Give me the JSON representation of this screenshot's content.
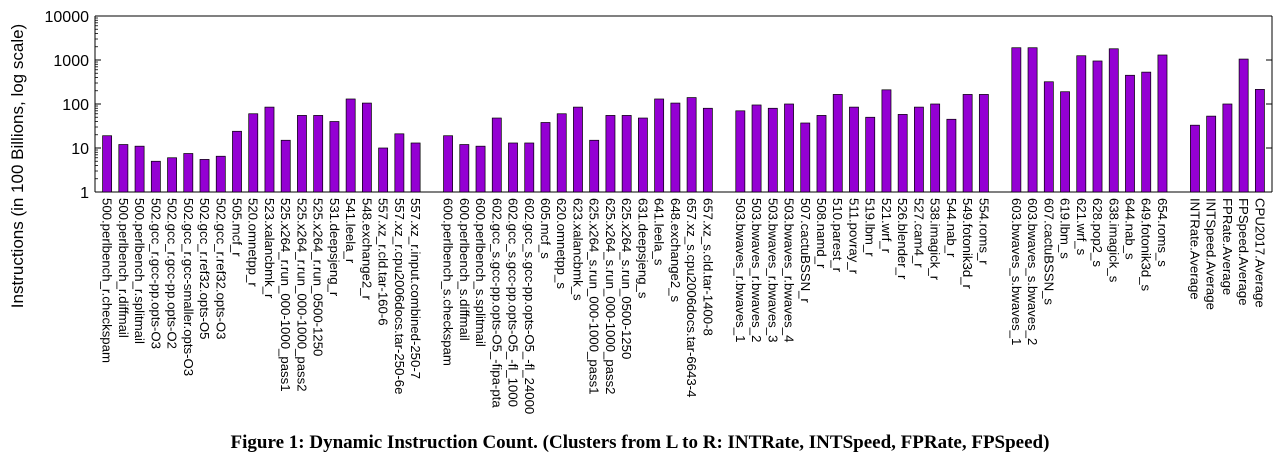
{
  "caption": "Figure 1: Dynamic Instruction Count. (Clusters from L to R: INTRate, INTSpeed, FPRate, FPSpeed)",
  "colors": {
    "bar": "#9400D3",
    "bar_edge": "#000000"
  },
  "chart_data": {
    "type": "bar",
    "title": "",
    "xlabel": "",
    "ylabel": "Instructions (in 100 Billions, log scale)",
    "yscale": "log",
    "ylim": [
      1,
      10000
    ],
    "yticks": [
      "1",
      "10",
      "100",
      "1000",
      "10000"
    ],
    "grid": false,
    "clusters": [
      {
        "categories": [
          "500.perlbench_r.checkspam",
          "500.perlbench_r.diffmail",
          "500.perlbench_r.splitmail",
          "502.gcc_r.gcc-pp.opts-O3",
          "502.gcc_r.gcc-pp.opts-O2",
          "502.gcc_r.gcc-smaller.opts-O3",
          "502.gcc_r.ref32.opts-O5",
          "502.gcc_r.ref32.opts-O3",
          "505.mcf_r",
          "520.omnetpp_r",
          "523.xalancbmk_r",
          "525.x264_r.run_000-1000_pass1",
          "525.x264_r.run_000-1000_pass2",
          "525.x264_r.run_0500-1250",
          "531.deepsjeng_r",
          "541.leela_r",
          "548.exchange2_r",
          "557.xz_r.cld.tar-160-6",
          "557.xz_r.cpu2006docs.tar-250-6e",
          "557.xz_r.input.combined-250-7"
        ],
        "values": [
          19,
          12,
          11,
          5,
          6,
          7.5,
          5.5,
          6.5,
          24,
          60,
          85,
          15,
          55,
          55,
          40,
          130,
          105,
          10,
          21,
          13
        ]
      },
      {
        "categories": [
          "600.perlbench_s.checkspam",
          "600.perlbench_s.diffmail",
          "600.perlbench_s.splitmail",
          "602.gcc_s.gcc-pp.opts-O5_-fipa-pta",
          "602.gcc_s.gcc-pp.opts-O5_-fl_1000",
          "602.gcc_s.gcc-pp.opts-O5_-fl_24000",
          "605.mcf_s",
          "620.omnetpp_s",
          "623.xalancbmk_s",
          "625.x264_s.run_000-1000_pass1",
          "625.x264_s.run_000-1000_pass2",
          "625.x264_s.run_0500-1250",
          "631.deepsjeng_s",
          "641.leela_s",
          "648.exchange2_s",
          "657.xz_s.cpu2006docs.tar-6643-4",
          "657.xz_s.cld.tar-1400-8"
        ],
        "values": [
          19,
          12,
          11,
          48,
          13,
          13,
          38,
          60,
          85,
          15,
          55,
          55,
          48,
          130,
          105,
          140,
          80
        ]
      },
      {
        "categories": [
          "503.bwaves_r.bwaves_1",
          "503.bwaves_r.bwaves_2",
          "503.bwaves_r.bwaves_3",
          "503.bwaves_r.bwaves_4",
          "507.cactuBSSN_r",
          "508.namd_r",
          "510.parest_r",
          "511.povray_r",
          "519.lbm_r",
          "521.wrf_r",
          "526.blender_r",
          "527.cam4_r",
          "538.imagick_r",
          "544.nab_r",
          "549.fotonik3d_r",
          "554.roms_r"
        ],
        "values": [
          70,
          95,
          80,
          100,
          37,
          55,
          165,
          85,
          50,
          210,
          58,
          85,
          100,
          45,
          165,
          165
        ]
      },
      {
        "categories": [
          "603.bwaves_s.bwaves_1",
          "603.bwaves_s.bwaves_2",
          "607.cactuBSSN_s",
          "619.lbm_s",
          "621.wrf_s",
          "628.pop2_s",
          "638.imagick_s",
          "644.nab_s",
          "649.fotonik3d_s",
          "654.roms_s"
        ],
        "values": [
          1900,
          1900,
          320,
          190,
          1250,
          950,
          1800,
          450,
          530,
          1300
        ]
      },
      {
        "categories": [
          "INTRate.Average",
          "INTSpeed.Average",
          "FPRate.Average",
          "FPSpeed.Average",
          "CPU2017.Average"
        ],
        "values": [
          33,
          53,
          100,
          1050,
          215
        ]
      }
    ]
  }
}
